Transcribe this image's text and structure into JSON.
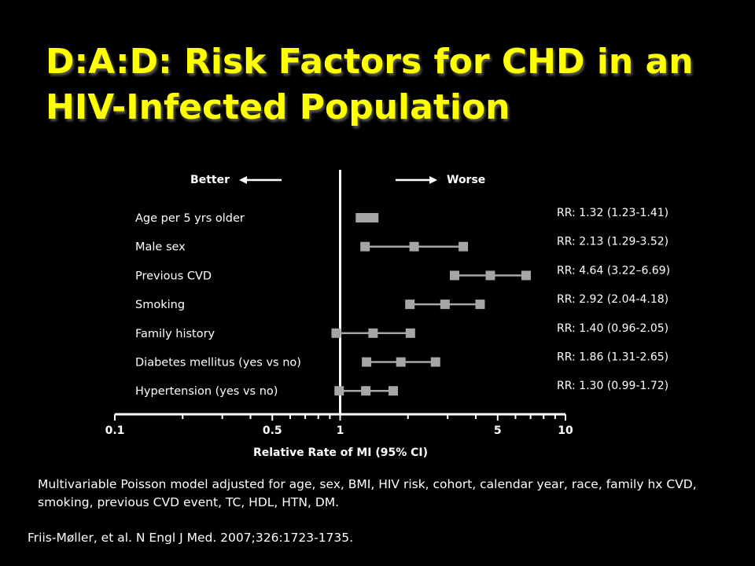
{
  "title": {
    "line1": "D:A:D: Risk Factors for CHD in an",
    "line2": "HIV-Infected Population"
  },
  "chart_data": {
    "type": "forest",
    "xscale": "log",
    "xlim": [
      0.1,
      10
    ],
    "xlabel": "Relative Rate of MI (95% CI)",
    "tick_labels": [
      "0.1",
      "0.5",
      "1",
      "5",
      "10"
    ],
    "tick_values": [
      0.1,
      0.5,
      1,
      5,
      10
    ],
    "minor_ticks": [
      0.2,
      0.3,
      0.4,
      0.6,
      0.7,
      0.8,
      0.9,
      2,
      3,
      4,
      6,
      7,
      8,
      9
    ],
    "reference_line": 1,
    "direction_labels": {
      "left": "Better",
      "right": "Worse"
    },
    "rows": [
      {
        "label": "Age per 5 yrs older",
        "rr": 1.32,
        "lower": 1.23,
        "upper": 1.41,
        "rr_text": "RR: 1.32 (1.23-1.41)"
      },
      {
        "label": "Male sex",
        "rr": 2.13,
        "lower": 1.29,
        "upper": 3.52,
        "rr_text": "RR: 2.13 (1.29-3.52)"
      },
      {
        "label": "Previous CVD",
        "rr": 4.64,
        "lower": 3.22,
        "upper": 6.69,
        "rr_text": "RR: 4.64 (3.22–6.69)"
      },
      {
        "label": "Smoking",
        "rr": 2.92,
        "lower": 2.04,
        "upper": 4.18,
        "rr_text": "RR: 2.92 (2.04-4.18)"
      },
      {
        "label": "Family history",
        "rr": 1.4,
        "lower": 0.96,
        "upper": 2.05,
        "rr_text": "RR: 1.40 (0.96-2.05)"
      },
      {
        "label": "Diabetes mellitus (yes vs no)",
        "rr": 1.86,
        "lower": 1.31,
        "upper": 2.65,
        "rr_text": "RR: 1.86 (1.31-2.65)"
      },
      {
        "label": "Hypertension (yes vs no)",
        "rr": 1.3,
        "lower": 0.99,
        "upper": 1.72,
        "rr_text": "RR: 1.30 (0.99-1.72)"
      }
    ],
    "colors": {
      "marker": "#a6a6a6",
      "line": "#a6a6a6",
      "axis": "#ffffff",
      "text": "#ffffff"
    }
  },
  "note": "Multivariable Poisson model adjusted for age, sex, BMI, HIV risk, cohort, calendar year, race, family hx CVD, smoking, previous CVD event, TC, HDL, HTN, DM.",
  "citation": "Friis-Møller, et al. N Engl J Med. 2007;326:1723-1735.",
  "colors": {
    "background": "#000000",
    "title": "#ffff00"
  }
}
